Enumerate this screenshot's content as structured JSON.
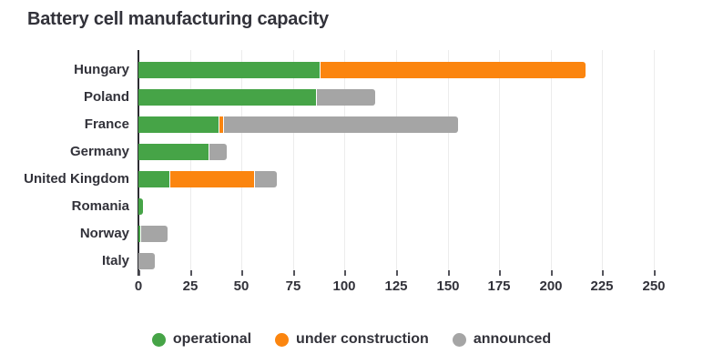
{
  "title": "Battery cell manufacturing capacity",
  "chart_data": {
    "type": "bar",
    "orientation": "horizontal",
    "stacked": true,
    "title": "Battery cell manufacturing capacity",
    "categories": [
      "Hungary",
      "Poland",
      "France",
      "Germany",
      "United Kingdom",
      "Romania",
      "Norway",
      "Italy"
    ],
    "series": [
      {
        "name": "operational",
        "color": "#46a447",
        "values": [
          88,
          86,
          39,
          34,
          15,
          2,
          1,
          0
        ]
      },
      {
        "name": "under construction",
        "color": "#fb850f",
        "values": [
          129,
          0,
          2,
          0,
          41,
          0,
          0,
          0
        ]
      },
      {
        "name": "announced",
        "color": "#a5a5a5",
        "values": [
          0,
          29,
          114,
          9,
          11,
          0,
          13,
          8
        ]
      }
    ],
    "totals": [
      217,
      115,
      155,
      43,
      67,
      2,
      14,
      8
    ],
    "xlim": [
      0,
      250
    ],
    "xticks": [
      0,
      25,
      50,
      75,
      100,
      125,
      150,
      175,
      200,
      225,
      250
    ],
    "grid": "vertical-light",
    "legend_position": "bottom"
  },
  "colors": {
    "background": "#ffffff",
    "title_text": "#32323a",
    "axis_line": "#2d2d33",
    "gridline": "#ececec",
    "operational": "#46a447",
    "under_construction": "#fb850f",
    "announced": "#a5a5a5"
  }
}
